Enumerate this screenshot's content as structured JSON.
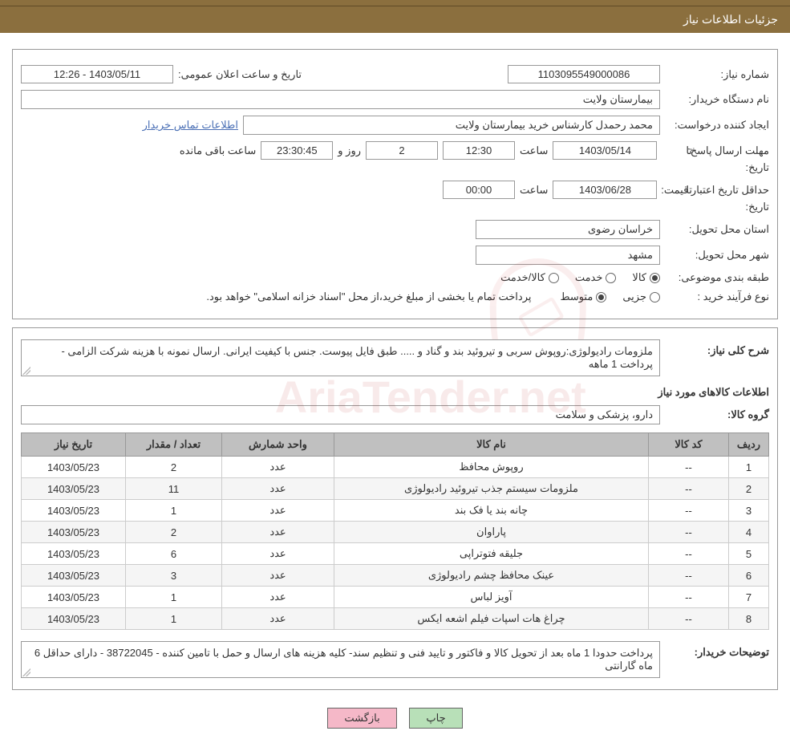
{
  "header": {
    "page_title": "جزئیات اطلاعات نیاز"
  },
  "form": {
    "need_number": {
      "label": "شماره نیاز:",
      "value": "1103095549000086"
    },
    "announce_datetime": {
      "label": "تاریخ و ساعت اعلان عمومی:",
      "value": "1403/05/11 - 12:26"
    },
    "buyer_org": {
      "label": "نام دستگاه خریدار:",
      "value": "بیمارستان ولایت"
    },
    "requester": {
      "label": "ایجاد کننده درخواست:",
      "value": "محمد رحمدل کارشناس خرید بیمارستان ولایت"
    },
    "contact_link": "اطلاعات تماس خریدار",
    "deadline": {
      "label": "مهلت ارسال پاسخ:",
      "to_label": "تا",
      "date_label": "تاریخ:",
      "date_value": "1403/05/14",
      "time_label": "ساعت",
      "time_value": "12:30",
      "days_value": "2",
      "days_label": "روز و",
      "remaining_time": "23:30:45",
      "remaining_label": "ساعت باقی مانده"
    },
    "price_validity": {
      "label": "حداقل تاریخ اعتبار قیمت:",
      "to_label": "تا",
      "date_label": "تاریخ:",
      "date_value": "1403/06/28",
      "time_label": "ساعت",
      "time_value": "00:00"
    },
    "delivery_province": {
      "label": "استان محل تحویل:",
      "value": "خراسان رضوی"
    },
    "delivery_city": {
      "label": "شهر محل تحویل:",
      "value": "مشهد"
    },
    "category": {
      "label": "طبقه بندی موضوعی:",
      "options": [
        {
          "label": "کالا",
          "selected": true
        },
        {
          "label": "خدمت",
          "selected": false
        },
        {
          "label": "کالا/خدمت",
          "selected": false
        }
      ]
    },
    "process_type": {
      "label": "نوع فرآیند خرید :",
      "options": [
        {
          "label": "جزیی",
          "selected": false
        },
        {
          "label": "متوسط",
          "selected": true
        }
      ],
      "note": "پرداخت تمام یا بخشی از مبلغ خرید،از محل \"اسناد خزانه اسلامی\" خواهد بود."
    }
  },
  "details": {
    "description": {
      "label": "شرح کلی نیاز:",
      "value": "ملزومات رادیولوژی:روپوش سربی و تیروئید بند و گناد و ..... طبق فایل پیوست. جنس با کیفیت ایرانی. ارسال نمونه با هزینه شرکت الزامی - پرداخت 1 ماهه"
    },
    "items_title": "اطلاعات کالاهای مورد نیاز",
    "goods_group": {
      "label": "گروه کالا:",
      "value": "دارو، پزشکی و سلامت"
    },
    "table": {
      "columns": [
        "ردیف",
        "کد کالا",
        "نام کالا",
        "واحد شمارش",
        "تعداد / مقدار",
        "تاریخ نیاز"
      ],
      "rows": [
        [
          "1",
          "--",
          "روپوش محافظ",
          "عدد",
          "2",
          "1403/05/23"
        ],
        [
          "2",
          "--",
          "ملزومات سیستم جذب تیروئید رادیولوژی",
          "عدد",
          "11",
          "1403/05/23"
        ],
        [
          "3",
          "--",
          "چانه بند یا فک بند",
          "عدد",
          "1",
          "1403/05/23"
        ],
        [
          "4",
          "--",
          "پاراوان",
          "عدد",
          "2",
          "1403/05/23"
        ],
        [
          "5",
          "--",
          "جلیقه فتوتراپی",
          "عدد",
          "6",
          "1403/05/23"
        ],
        [
          "6",
          "--",
          "عینک محافظ چشم رادیولوژی",
          "عدد",
          "3",
          "1403/05/23"
        ],
        [
          "7",
          "--",
          "آویز لباس",
          "عدد",
          "1",
          "1403/05/23"
        ],
        [
          "8",
          "--",
          "چراغ هات اسپات فیلم اشعه ایکس",
          "عدد",
          "1",
          "1403/05/23"
        ]
      ]
    },
    "buyer_notes": {
      "label": "توضیحات خریدار:",
      "value": "پرداخت حدودا 1 ماه بعد از تحویل کالا و فاکتور و تایید فنی و تنظیم سند- کلیه هزینه های ارسال و حمل با تامین کننده - 38722045 - دارای حداقل 6 ماه گارانتی"
    }
  },
  "buttons": {
    "print": "چاپ",
    "back": "بازگشت"
  },
  "colors": {
    "header_bg": "#8b6f3e",
    "border": "#999999",
    "link": "#4a6fb5",
    "table_header_bg": "#c0c0c0",
    "row_alt_bg": "#f5f5f5",
    "btn_print_bg": "#b8e0b8",
    "btn_back_bg": "#f5b8c8"
  }
}
